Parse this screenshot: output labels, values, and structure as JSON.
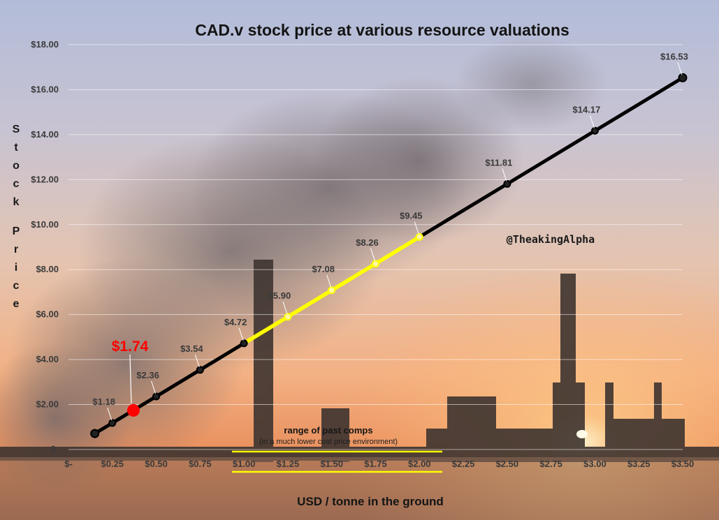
{
  "chart_data": {
    "type": "line",
    "title": "CAD.v stock price at various resource valuations",
    "xlabel": "USD / tonne  in the ground",
    "ylabel": "Stock Price",
    "xlim": [
      0,
      3.5
    ],
    "ylim": [
      0,
      18
    ],
    "x_ticks": [
      "$-",
      "$0.25",
      "$0.50",
      "$0.75",
      "$1.00",
      "$1.25",
      "$1.50",
      "$1.75",
      "$2.00",
      "$2.25",
      "$2.50",
      "$2.75",
      "$3.00",
      "$3.25",
      "$3.50"
    ],
    "y_ticks": [
      "$-",
      "$2.00",
      "$4.00",
      "$6.00",
      "$8.00",
      "$10.00",
      "$12.00",
      "$14.00",
      "$16.00",
      "$18.00"
    ],
    "grid": true,
    "series": [
      {
        "x": [
          0.15,
          0.25,
          0.5,
          0.75,
          1.0,
          1.25,
          1.5,
          1.75,
          2.0,
          2.5,
          3.0,
          3.5
        ],
        "values": [
          0.71,
          1.18,
          2.36,
          3.54,
          4.72,
          5.9,
          7.08,
          8.26,
          9.45,
          11.81,
          14.17,
          16.53
        ],
        "data_labels": [
          "",
          "$1.18",
          "$2.36",
          "$3.54",
          "$4.72",
          "$5.90",
          "$7.08",
          "$8.26",
          "$9.45",
          "$11.81",
          "$14.17",
          "$16.53"
        ],
        "color": "#000000"
      }
    ],
    "highlight_range": {
      "x": [
        1.0,
        2.0
      ],
      "color": "#ffff00"
    },
    "current_point": {
      "x": 0.37,
      "y": 1.74,
      "label": "$1.74",
      "color": "#ff0000"
    },
    "annotations": {
      "handle": "@TheakingAlpha",
      "range_label": "range of past comps",
      "range_sublabel": "(in a much lower coal price environment)"
    }
  },
  "colors": {
    "line": "#000000",
    "highlight": "#ffff00",
    "current": "#ff0000",
    "bracket": "#ffff00"
  }
}
